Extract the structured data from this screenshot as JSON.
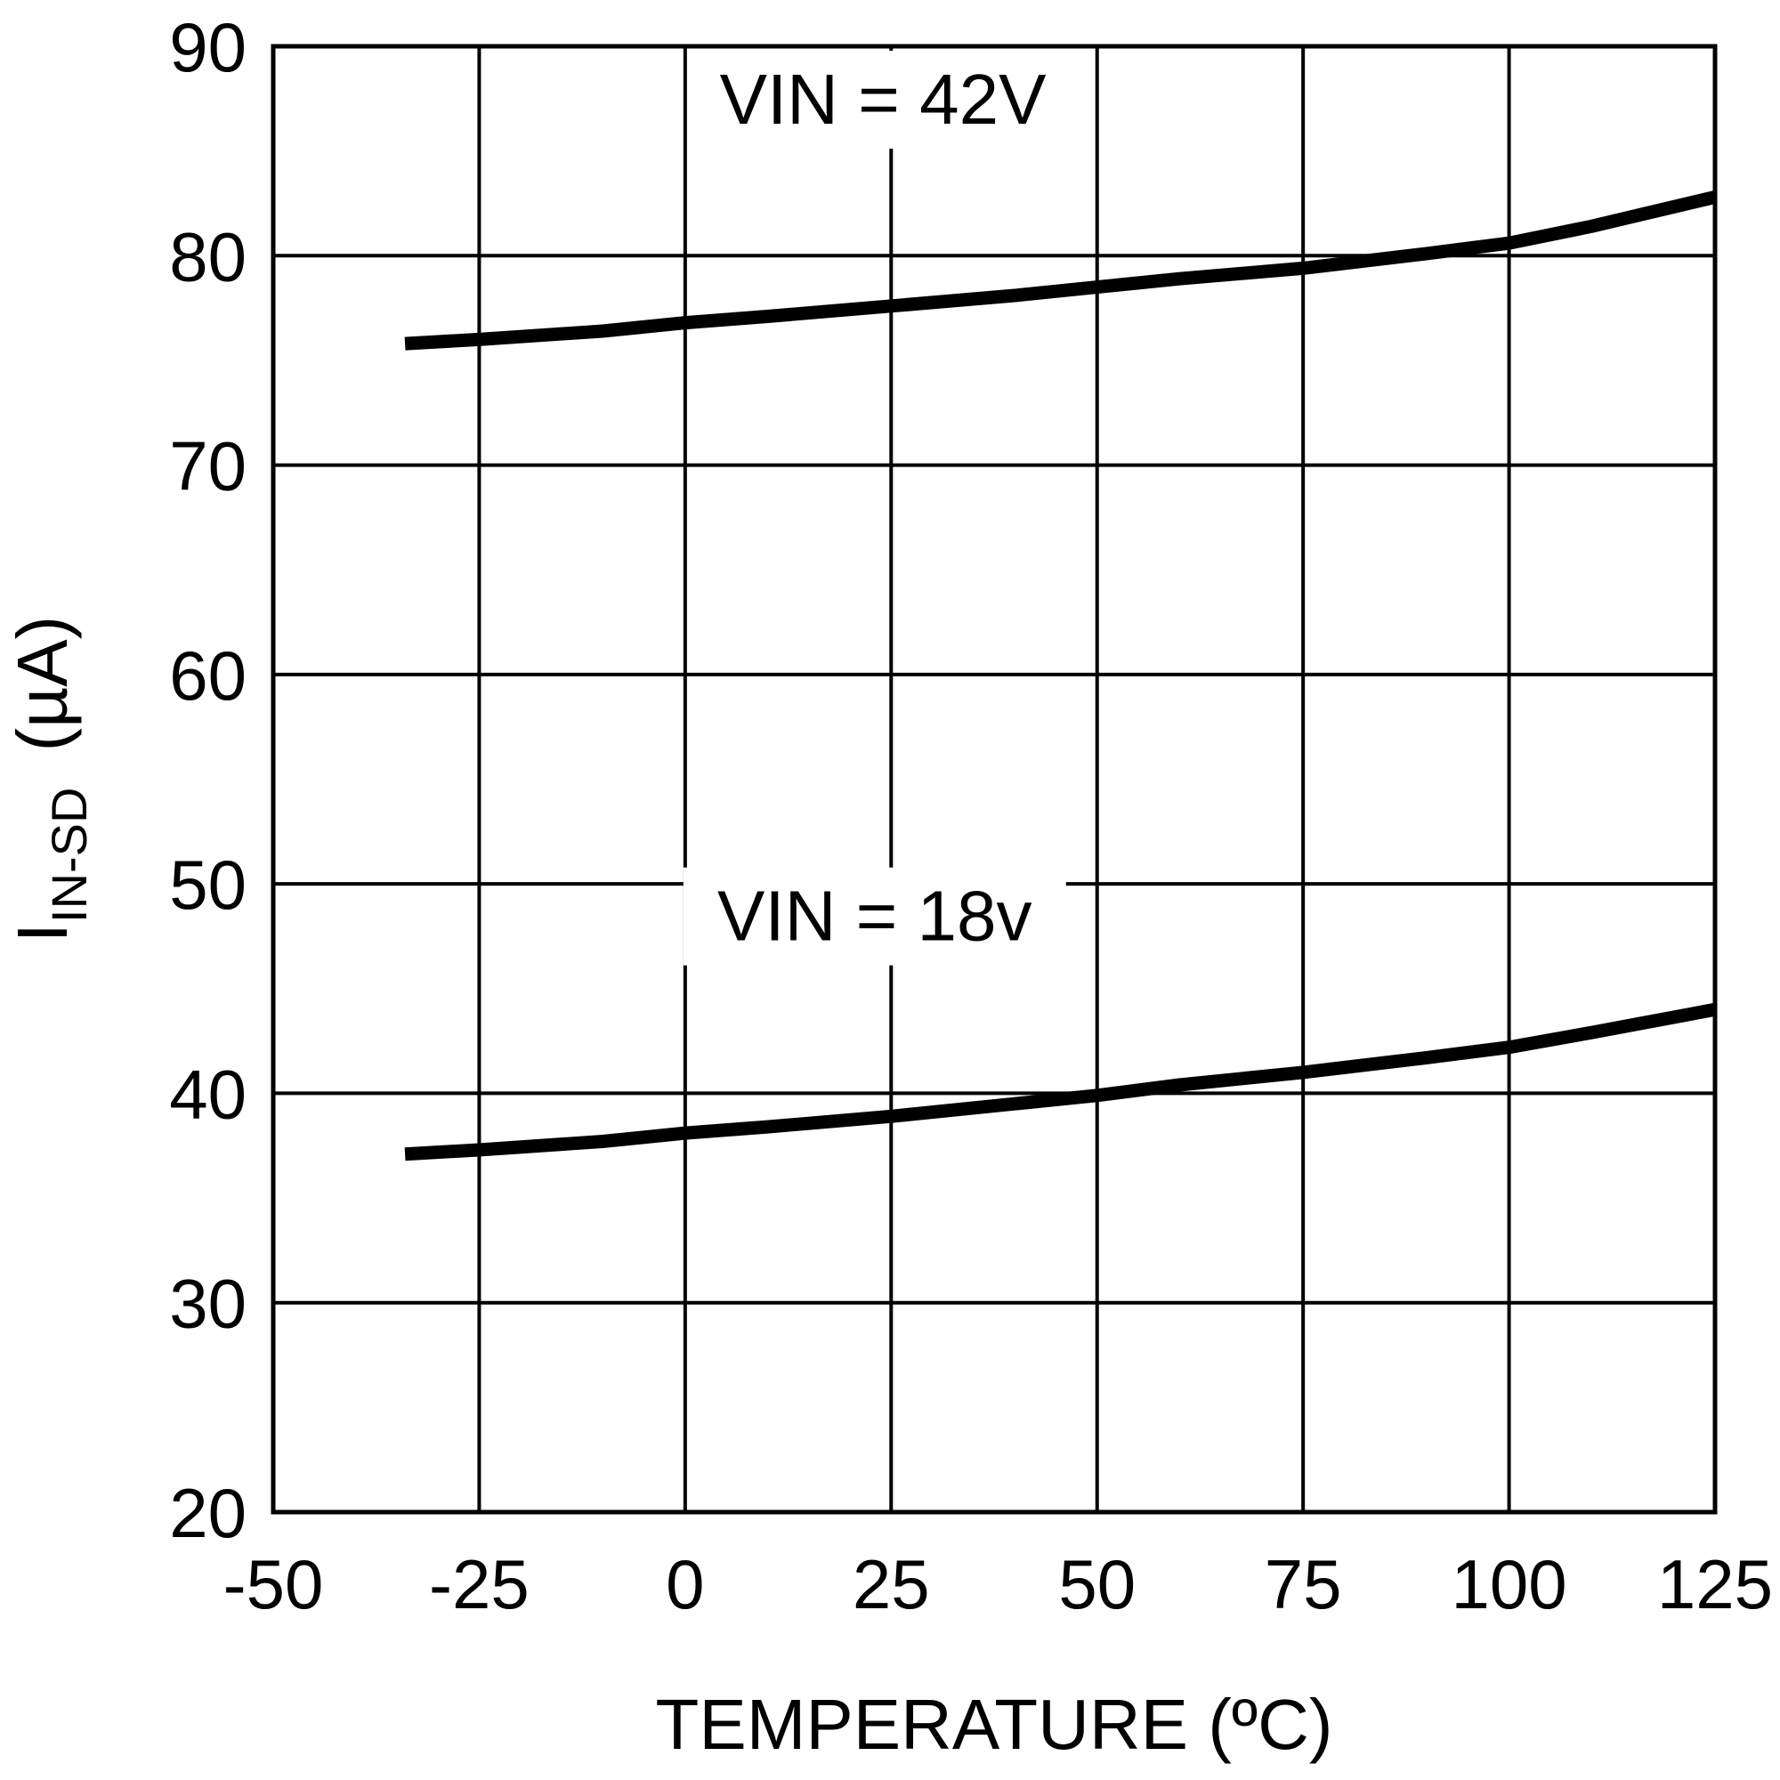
{
  "chart_data": {
    "type": "line",
    "title": "",
    "xlabel": "TEMPERATURE (ºC)",
    "ylabel": {
      "main": "I",
      "subscript": "IN-SD",
      "unit": "(µA)"
    },
    "xlim": [
      -50,
      125
    ],
    "ylim": [
      20,
      90
    ],
    "xticks": [
      "-50",
      "-25",
      "0",
      "25",
      "50",
      "75",
      "100",
      "125"
    ],
    "yticks": [
      "20",
      "30",
      "40",
      "50",
      "60",
      "70",
      "80",
      "90"
    ],
    "grid": true,
    "series": [
      {
        "name": "VIN = 42V",
        "x": [
          -34,
          -25,
          -10,
          0,
          10,
          25,
          40,
          50,
          60,
          75,
          90,
          100,
          110,
          125
        ],
        "y": [
          75.8,
          76.0,
          76.4,
          76.8,
          77.1,
          77.6,
          78.1,
          78.5,
          78.9,
          79.4,
          80.1,
          80.6,
          81.4,
          82.8
        ]
      },
      {
        "name": "VIN = 18v",
        "x": [
          -34,
          -25,
          -10,
          0,
          10,
          25,
          40,
          50,
          60,
          75,
          90,
          100,
          110,
          125
        ],
        "y": [
          37.1,
          37.3,
          37.7,
          38.1,
          38.4,
          38.9,
          39.5,
          39.9,
          40.4,
          41.0,
          41.7,
          42.2,
          42.9,
          44.0
        ]
      }
    ],
    "annotations": [
      {
        "text": "VIN = 42V",
        "x": 24,
        "y": 86.3
      },
      {
        "text": "VIN = 18v",
        "x": 23,
        "y": 47.3
      }
    ]
  }
}
